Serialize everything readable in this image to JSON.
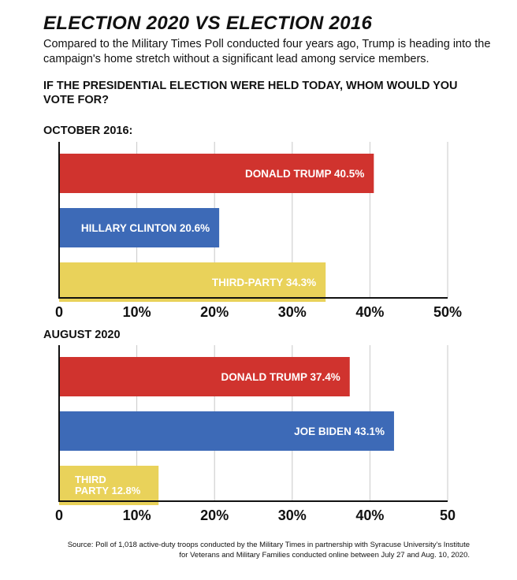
{
  "header": {
    "title": "ELECTION 2020 VS ELECTION 2016",
    "subtitle": "Compared to the Military Times Poll conducted four years ago, Trump is heading into the campaign's home stretch without a significant lead among service members.",
    "question": "If the presidential election were held today, whom would you vote for?"
  },
  "chart_data": [
    {
      "type": "bar",
      "orientation": "horizontal",
      "title": "OCTOBER 2016:",
      "categories": [
        "DONALD TRUMP",
        "HILLARY CLINTON",
        "THIRD-PARTY"
      ],
      "bar_labels": [
        [
          "DONALD TRUMP 40.5%"
        ],
        [
          "HILLARY CLINTON 20.6%"
        ],
        [
          "THIRD-PARTY 34.3%"
        ]
      ],
      "values": [
        40.5,
        20.6,
        34.3
      ],
      "colors": [
        "#d0332e",
        "#3d6ab7",
        "#e9d25a"
      ],
      "xlim": [
        0,
        50
      ],
      "xticks": [
        0,
        10,
        20,
        30,
        40,
        50
      ],
      "xtick_labels": [
        "0",
        "10%",
        "20%",
        "30%",
        "40%",
        "50%"
      ],
      "grid": true
    },
    {
      "type": "bar",
      "orientation": "horizontal",
      "title": "AUGUST 2020",
      "categories": [
        "DONALD TRUMP",
        "JOE BIDEN",
        "THIRD PARTY"
      ],
      "bar_labels": [
        [
          "DONALD TRUMP 37.4%"
        ],
        [
          "JOE BIDEN 43.1%"
        ],
        [
          "THIRD",
          "PARTY 12.8%"
        ]
      ],
      "values": [
        37.4,
        43.1,
        12.8
      ],
      "colors": [
        "#d0332e",
        "#3d6ab7",
        "#e9d25a"
      ],
      "xlim": [
        0,
        50
      ],
      "xticks": [
        0,
        10,
        20,
        30,
        40,
        50
      ],
      "xtick_labels": [
        "0",
        "10%",
        "20%",
        "30%",
        "40%",
        "50"
      ],
      "grid": true
    }
  ],
  "footer": {
    "source": "Source: Poll of 1,018 active-duty troops conducted by the Military Times in partnership with Syracuse University's Institute for Veterans and Military Families conducted online between July 27 and Aug. 10, 2020."
  }
}
